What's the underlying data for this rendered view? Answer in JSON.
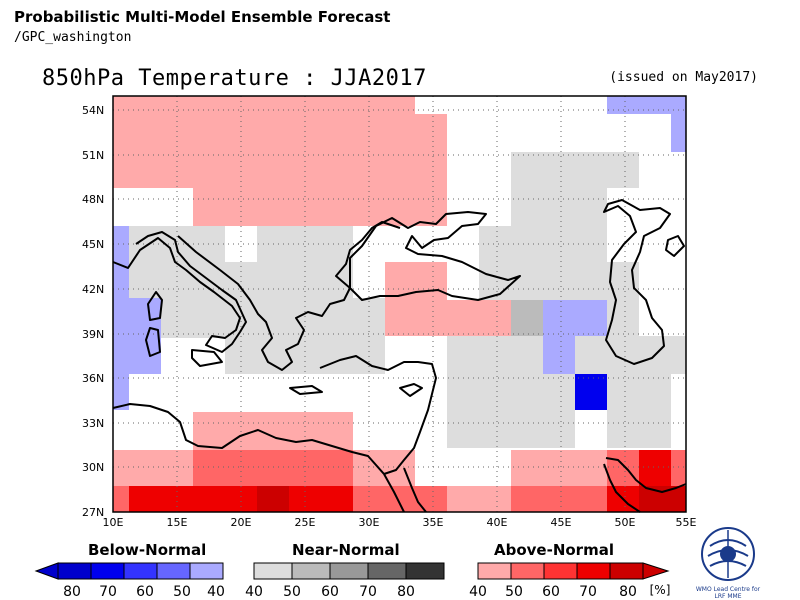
{
  "header": {
    "title": "Probabilistic Multi-Model Ensemble Forecast",
    "subtitle": "/GPC_washington"
  },
  "map": {
    "title": "850hPa Temperature : JJA2017",
    "issued": "(issued on May2017)",
    "lat_labels": [
      "54N",
      "51N",
      "48N",
      "45N",
      "42N",
      "39N",
      "36N",
      "33N",
      "30N",
      "27N"
    ],
    "lon_labels": [
      "10E",
      "15E",
      "20E",
      "25E",
      "30E",
      "35E",
      "40E",
      "45E",
      "50E",
      "55E"
    ],
    "region": {
      "lon_min": 10,
      "lon_max": 55,
      "lat_min": 27,
      "lat_max": 55.3
    }
  },
  "legend": {
    "below": {
      "title": "Below-Normal",
      "ticks": [
        "80",
        "70",
        "60",
        "50",
        "40"
      ],
      "colors": [
        "#0000cc",
        "#0000ee",
        "#3333ff",
        "#6666ff",
        "#aaaaff"
      ]
    },
    "near": {
      "title": "Near-Normal",
      "ticks": [
        "40",
        "50",
        "60",
        "70",
        "80"
      ],
      "colors": [
        "#dddddd",
        "#bbbbbb",
        "#999999",
        "#666666",
        "#333333"
      ]
    },
    "above": {
      "title": "Above-Normal",
      "ticks": [
        "40",
        "50",
        "60",
        "70",
        "80"
      ],
      "unit": "[%]",
      "colors": [
        "#ffaaaa",
        "#ff6666",
        "#ff3333",
        "#ee0000",
        "#cc0000"
      ]
    }
  },
  "logo": {
    "text": "WMO Lead Centre for LRF MME"
  }
}
